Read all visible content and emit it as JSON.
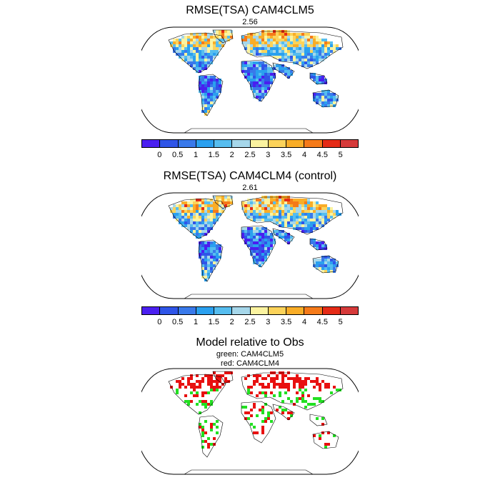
{
  "panels": [
    {
      "title": "RMSE(TSA) CAM4CLM5",
      "value": "2.56"
    },
    {
      "title": "RMSE(TSA) CAM4CLM4 (control)",
      "value": "2.61"
    },
    {
      "title": "Model relative to Obs",
      "legend_lines": [
        "green: CAM4CLM5",
        "red: CAM4CLM4"
      ]
    }
  ],
  "colorbar": {
    "ticks": [
      "0",
      "0.5",
      "1",
      "1.5",
      "2",
      "2.5",
      "3",
      "3.5",
      "4",
      "4.5",
      "5"
    ],
    "colors": [
      "#4a1ff0",
      "#2f55e8",
      "#3979ea",
      "#2aa0ef",
      "#56bdef",
      "#a6d7ea",
      "#fbf3a0",
      "#fcd35a",
      "#f9ad27",
      "#f57a19",
      "#e52b16",
      "#d63a3a"
    ]
  },
  "comparison_colors": {
    "green": "#22e022",
    "red": "#e81010"
  }
}
